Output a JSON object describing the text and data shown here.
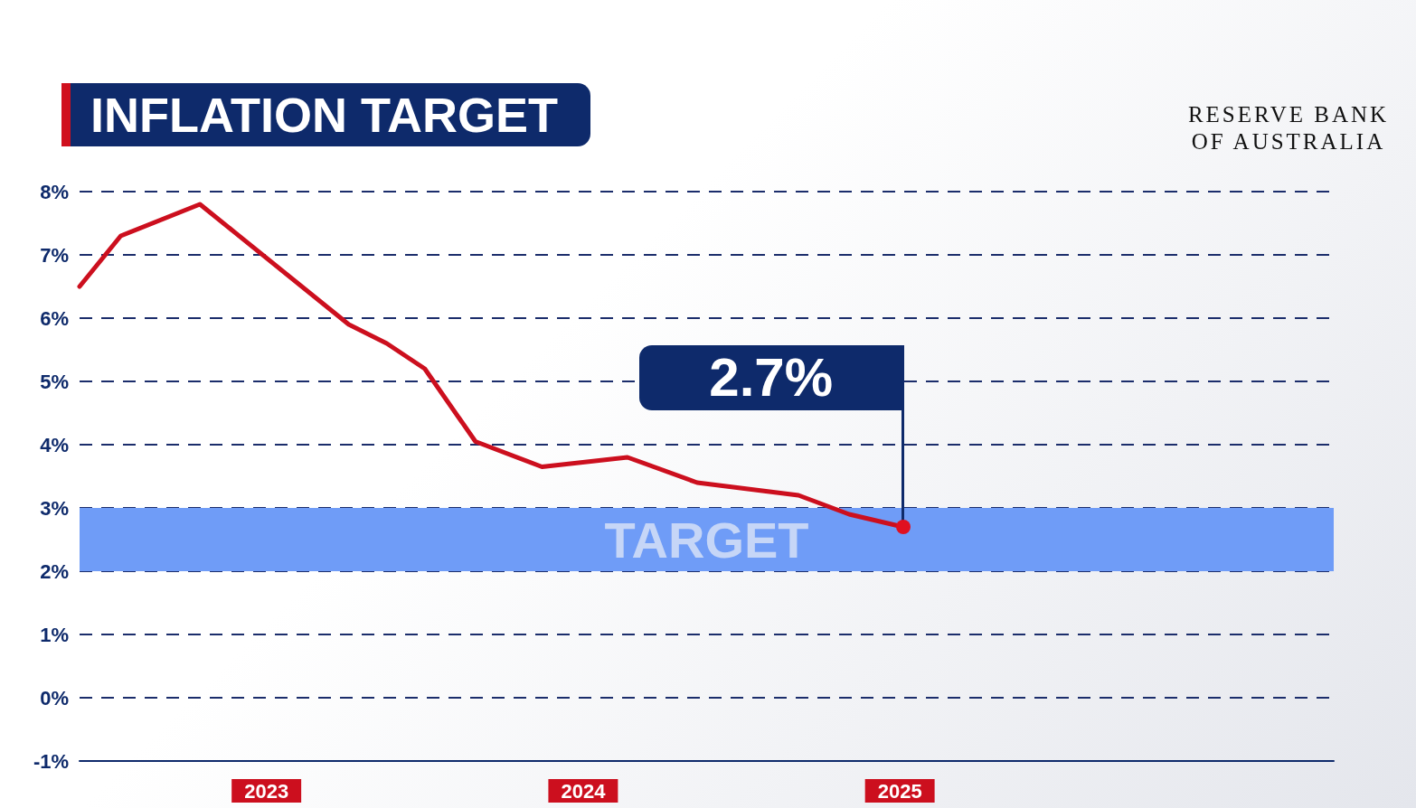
{
  "chart_data": {
    "type": "line",
    "title": "INFLATION TARGET",
    "x": [
      2022.41,
      2022.54,
      2022.79,
      2023.26,
      2023.38,
      2023.5,
      2023.66,
      2023.87,
      2024.14,
      2024.36,
      2024.68,
      2024.84,
      2025.01
    ],
    "series": [
      {
        "color": "#cc0f1e",
        "values": [
          6.5,
          7.3,
          7.8,
          5.9,
          5.6,
          5.2,
          4.05,
          3.65,
          3.8,
          3.4,
          3.2,
          2.9,
          2.7
        ]
      }
    ],
    "xlim": [
      2022.41,
      2026.37
    ],
    "xticks": [
      2023,
      2024,
      2025
    ],
    "ylim": [
      -1,
      8
    ],
    "yticks": [
      {
        "value": -1,
        "label": "-1%"
      },
      {
        "value": 0,
        "label": "0%"
      },
      {
        "value": 1,
        "label": "1%"
      },
      {
        "value": 2,
        "label": "2%"
      },
      {
        "value": 3,
        "label": "3%"
      },
      {
        "value": 4,
        "label": "4%"
      },
      {
        "value": 5,
        "label": "5%"
      },
      {
        "value": 6,
        "label": "6%"
      },
      {
        "value": 7,
        "label": "7%"
      },
      {
        "value": 8,
        "label": "8%"
      }
    ],
    "bands": [
      {
        "axis": "y",
        "from": 2,
        "to": 3,
        "label": "TARGET",
        "color": "#6f9cf7"
      }
    ],
    "annotations": [
      {
        "text": "2.7%",
        "x": 2025.01,
        "y": 2.7
      },
      "RESERVE BANK OF AUSTRALIA"
    ],
    "grid": "y",
    "marker": "none",
    "line_style": "solid"
  }
}
